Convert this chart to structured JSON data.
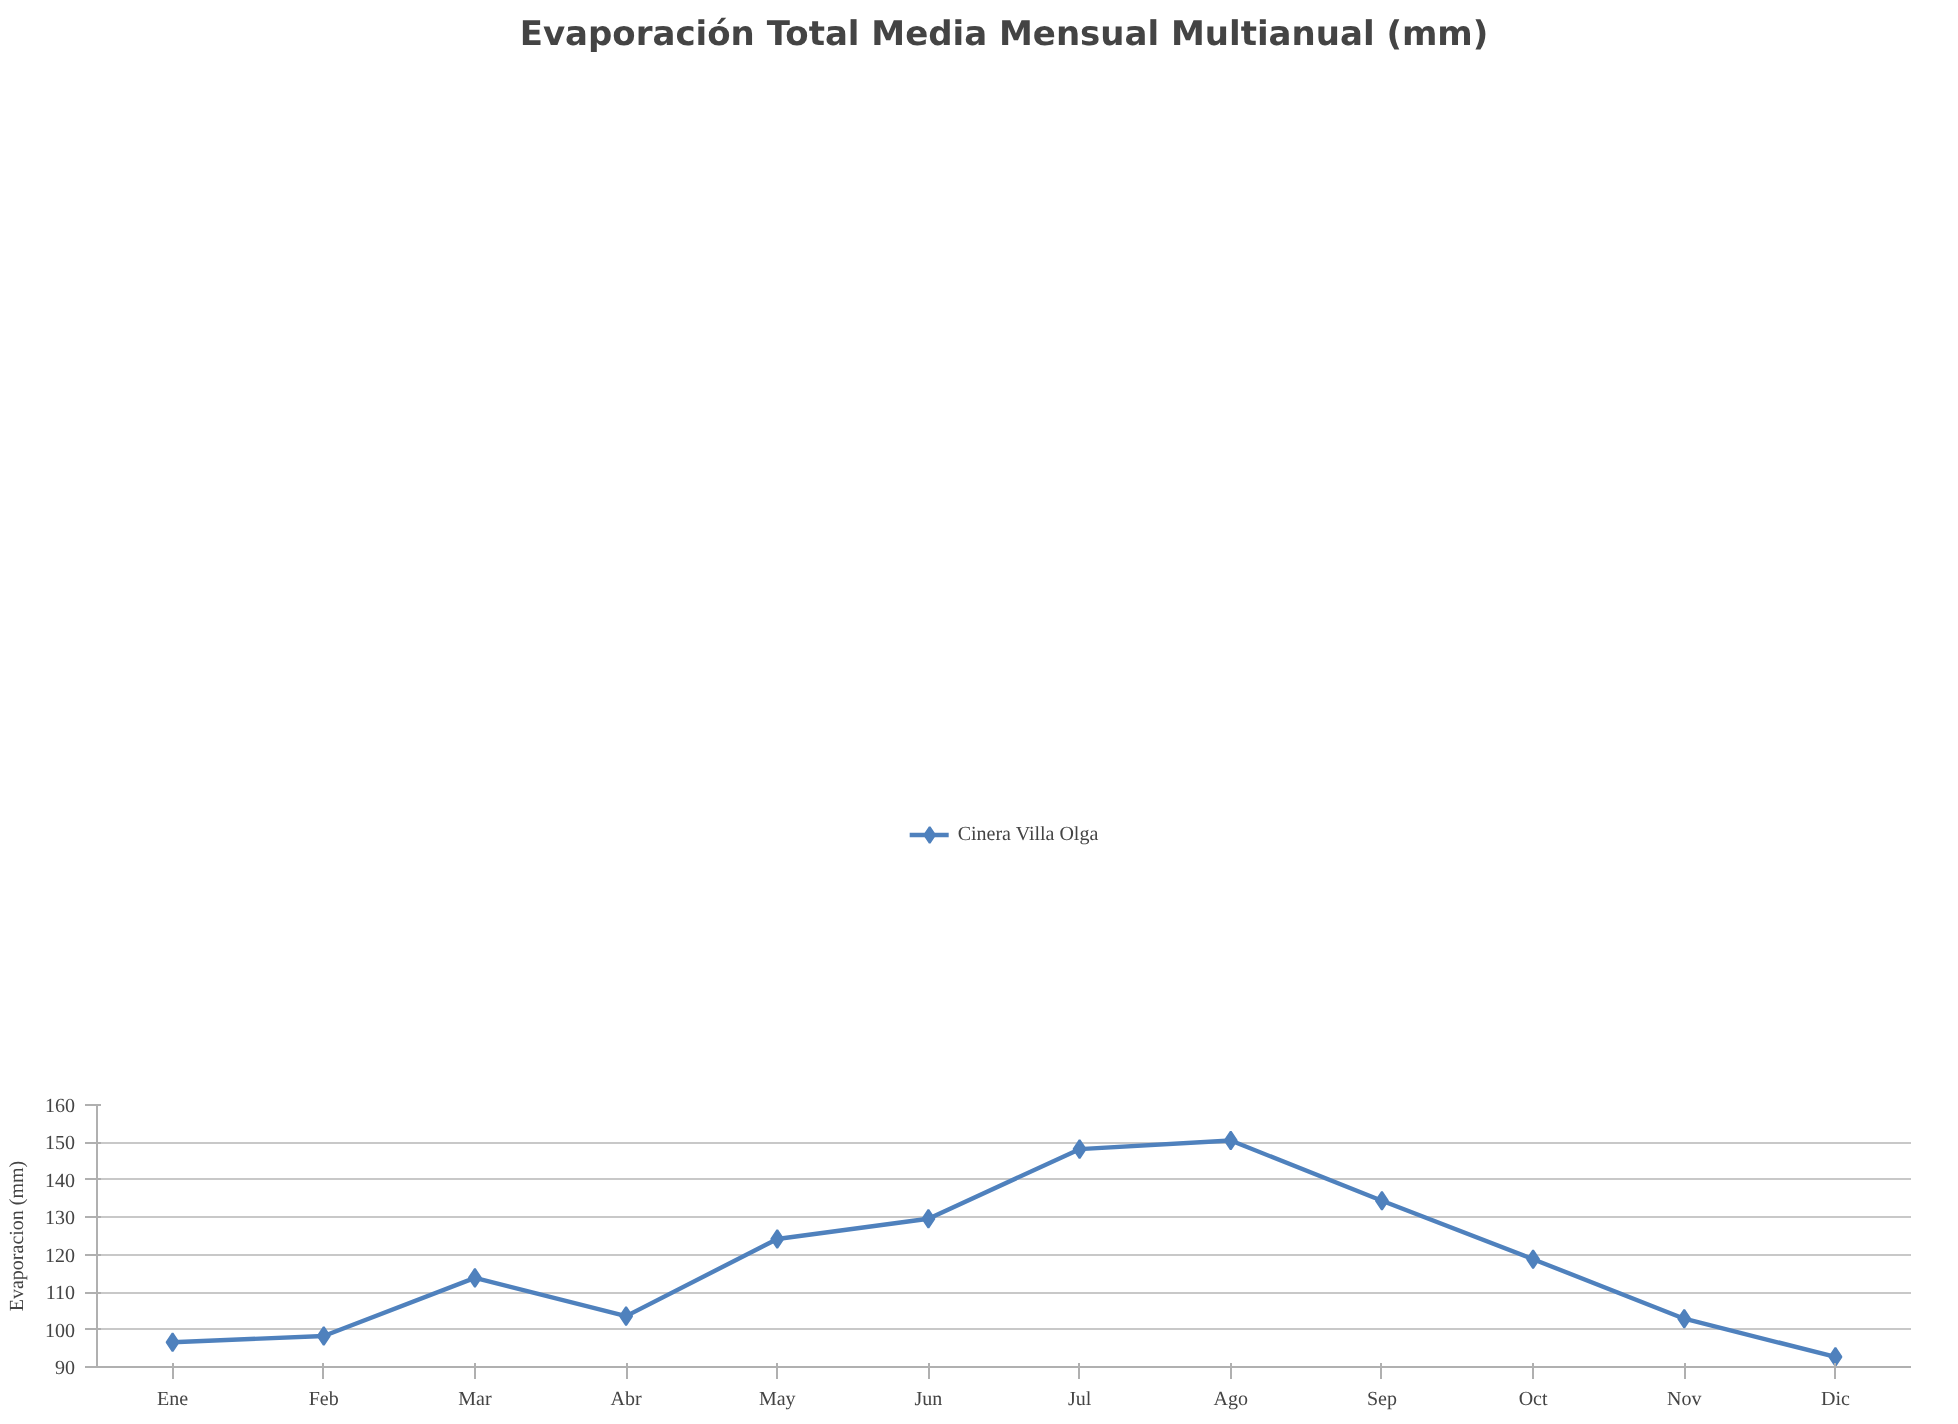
{
  "chart_data": {
    "type": "line",
    "title": "Evaporación Total Media Mensual Multianual (mm)",
    "ylabel": "Evaporacion (mm)",
    "categories": [
      "Ene",
      "Feb",
      "Mar",
      "Abr",
      "May",
      "Jun",
      "Jul",
      "Ago",
      "Sep",
      "Oct",
      "Nov",
      "Dic"
    ],
    "series": [
      {
        "name": "Cinera Villa Olga",
        "color": "#4f81bd",
        "values": [
          96.6,
          98.3,
          113.8,
          103.6,
          124.2,
          129.6,
          148.2,
          150.5,
          134.4,
          118.8,
          102.9,
          92.7
        ]
      }
    ],
    "ylim": [
      90,
      160
    ],
    "yticks": [
      90,
      100,
      110,
      120,
      130,
      140,
      150,
      160
    ],
    "grid": "y",
    "legend": "top",
    "marker": "diamond",
    "line_style": "solid"
  }
}
